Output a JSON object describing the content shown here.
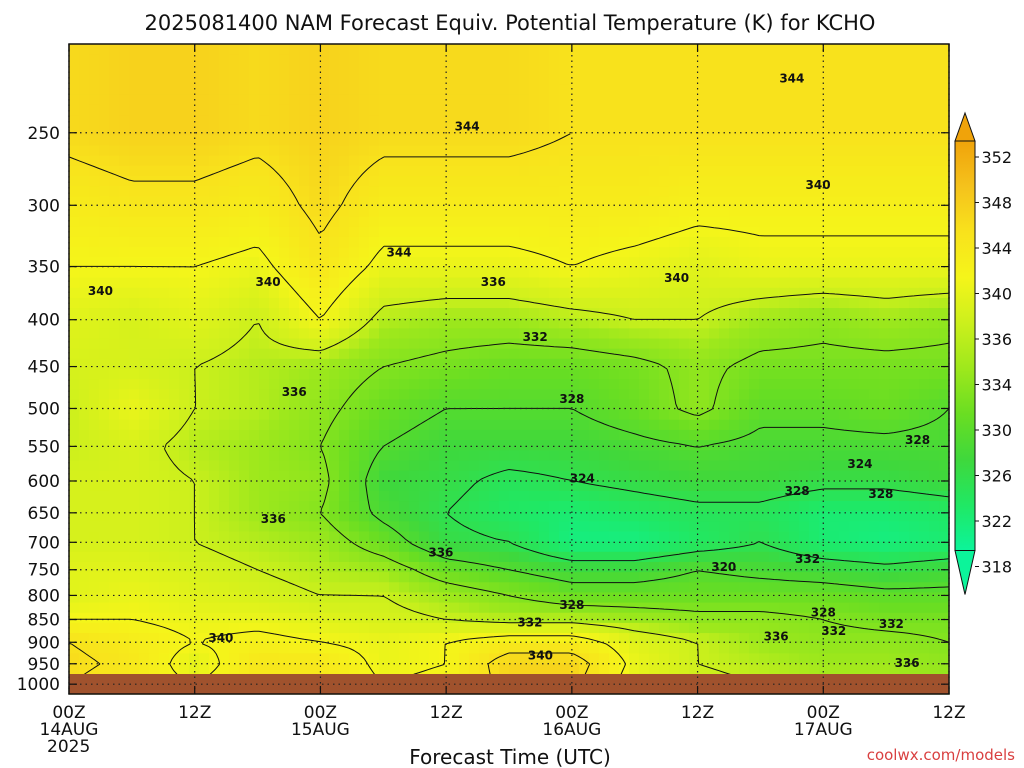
{
  "chart_data": {
    "type": "heatmap",
    "title": "2025081400 NAM Forecast Equiv. Potential Temperature (K) for KCHO",
    "xlabel": "Forecast Time (UTC)",
    "ylabel": "",
    "credit": "coolwx.com/models",
    "x_ticks": [
      {
        "hour": 0,
        "line1": "00Z",
        "line2": "14AUG",
        "line3": "2025"
      },
      {
        "hour": 12,
        "line1": "12Z",
        "line2": "",
        "line3": ""
      },
      {
        "hour": 24,
        "line1": "00Z",
        "line2": "15AUG",
        "line3": ""
      },
      {
        "hour": 36,
        "line1": "12Z",
        "line2": "",
        "line3": ""
      },
      {
        "hour": 48,
        "line1": "00Z",
        "line2": "16AUG",
        "line3": ""
      },
      {
        "hour": 60,
        "line1": "12Z",
        "line2": "",
        "line3": ""
      },
      {
        "hour": 72,
        "line1": "00Z",
        "line2": "17AUG",
        "line3": ""
      },
      {
        "hour": 84,
        "line1": "12Z",
        "line2": "",
        "line3": ""
      }
    ],
    "xlim": [
      0,
      84
    ],
    "y_ticks": [
      250,
      300,
      350,
      400,
      450,
      500,
      550,
      600,
      650,
      700,
      750,
      800,
      850,
      900,
      950,
      1000
    ],
    "y_scale": "log",
    "y_inverted": true,
    "ylim": [
      200,
      1025
    ],
    "grid": true,
    "colorbar": {
      "ticks": [
        352,
        348,
        344,
        340,
        336,
        334,
        330,
        326,
        322,
        318
      ],
      "colors": [
        "#f0a30a",
        "#f5c21c",
        "#f8e21c",
        "#f5f51a",
        "#ccf01c",
        "#9ee81c",
        "#6ade22",
        "#3fd83c",
        "#20e864",
        "#0cf49a"
      ],
      "extend": "both"
    },
    "hours": [
      0,
      6,
      12,
      18,
      24,
      30,
      36,
      42,
      48,
      54,
      60,
      66,
      72,
      78,
      84
    ],
    "levels": [
      250,
      300,
      350,
      400,
      450,
      500,
      550,
      600,
      650,
      700,
      750,
      800,
      850,
      900,
      950,
      1000
    ],
    "values": [
      [
        345,
        346,
        346,
        345,
        346,
        345,
        345,
        345,
        344,
        344,
        344,
        344,
        344,
        344,
        344
      ],
      [
        342,
        343,
        343,
        342,
        345,
        342,
        342,
        342,
        342,
        342,
        341,
        341,
        341,
        341,
        341
      ],
      [
        340,
        340,
        340,
        339,
        343,
        339,
        339,
        339,
        340,
        339,
        338,
        339,
        339,
        339,
        339
      ],
      [
        338,
        337,
        338,
        336,
        340,
        335,
        334,
        334,
        335,
        336,
        336,
        334,
        333,
        334,
        333
      ],
      [
        337,
        337,
        336,
        335,
        334,
        332,
        331,
        330,
        330,
        331,
        333,
        331,
        331,
        331,
        331
      ],
      [
        336,
        339,
        336,
        335,
        333,
        330,
        328,
        328,
        328,
        330,
        333,
        329,
        329,
        330,
        328
      ],
      [
        336,
        337,
        335,
        334,
        332,
        328,
        326,
        326,
        326,
        327,
        328,
        327,
        327,
        327,
        327
      ],
      [
        337,
        337,
        336,
        334,
        333,
        326,
        325,
        323,
        324,
        325,
        326,
        326,
        325,
        325,
        326
      ],
      [
        337,
        337,
        336,
        334,
        332,
        327,
        324,
        322,
        321,
        322,
        323,
        323,
        321,
        321,
        322
      ],
      [
        337,
        337,
        336,
        335,
        334,
        330,
        325,
        324,
        320,
        320,
        322,
        324,
        321,
        320,
        321
      ],
      [
        338,
        338,
        337,
        336,
        335,
        334,
        330,
        328,
        326,
        326,
        328,
        327,
        326,
        325,
        326
      ],
      [
        338,
        339,
        338,
        337,
        336,
        336,
        334,
        332,
        330,
        330,
        330,
        330,
        330,
        329,
        329
      ],
      [
        340,
        340,
        339,
        339,
        338,
        337,
        336,
        335,
        335,
        334,
        333,
        333,
        332,
        331,
        331
      ],
      [
        344,
        342,
        340,
        341,
        340,
        339,
        340,
        342,
        342,
        338,
        336,
        334,
        333,
        333,
        332
      ],
      [
        345,
        343,
        338,
        343,
        343,
        339,
        340,
        346,
        346,
        339,
        336,
        335,
        334,
        334,
        333
      ],
      [
        344,
        342,
        340,
        343,
        343,
        340,
        341,
        345,
        345,
        338,
        337,
        336,
        335,
        335,
        334
      ]
    ],
    "contour_levels": [
      320,
      324,
      328,
      332,
      336,
      340,
      344
    ],
    "contour_labels": [
      {
        "text": "344",
        "hour": 69.0,
        "p": 218
      },
      {
        "text": "344",
        "hour": 38.0,
        "p": 246
      },
      {
        "text": "340",
        "hour": 71.5,
        "p": 285
      },
      {
        "text": "344",
        "hour": 31.5,
        "p": 338
      },
      {
        "text": "340",
        "hour": 19.0,
        "p": 364
      },
      {
        "text": "336",
        "hour": 40.5,
        "p": 364
      },
      {
        "text": "340",
        "hour": 58.0,
        "p": 360
      },
      {
        "text": "340",
        "hour": 3.0,
        "p": 372
      },
      {
        "text": "332",
        "hour": 44.5,
        "p": 418
      },
      {
        "text": "336",
        "hour": 21.5,
        "p": 480
      },
      {
        "text": "328",
        "hour": 48.0,
        "p": 488
      },
      {
        "text": "328",
        "hour": 81.0,
        "p": 541
      },
      {
        "text": "324",
        "hour": 75.5,
        "p": 575
      },
      {
        "text": "324",
        "hour": 49.0,
        "p": 596
      },
      {
        "text": "328",
        "hour": 69.5,
        "p": 615
      },
      {
        "text": "328",
        "hour": 77.5,
        "p": 620
      },
      {
        "text": "336",
        "hour": 19.5,
        "p": 660
      },
      {
        "text": "332",
        "hour": 70.5,
        "p": 730
      },
      {
        "text": "320",
        "hour": 62.5,
        "p": 745
      },
      {
        "text": "336",
        "hour": 35.5,
        "p": 718
      },
      {
        "text": "328",
        "hour": 48.0,
        "p": 820
      },
      {
        "text": "328",
        "hour": 72.0,
        "p": 835
      },
      {
        "text": "332",
        "hour": 44.0,
        "p": 856
      },
      {
        "text": "332",
        "hour": 73.0,
        "p": 875
      },
      {
        "text": "332",
        "hour": 78.5,
        "p": 860
      },
      {
        "text": "340",
        "hour": 14.5,
        "p": 890
      },
      {
        "text": "336",
        "hour": 67.5,
        "p": 887
      },
      {
        "text": "340",
        "hour": 45.0,
        "p": 930
      },
      {
        "text": "336",
        "hour": 80.0,
        "p": 948
      }
    ]
  }
}
